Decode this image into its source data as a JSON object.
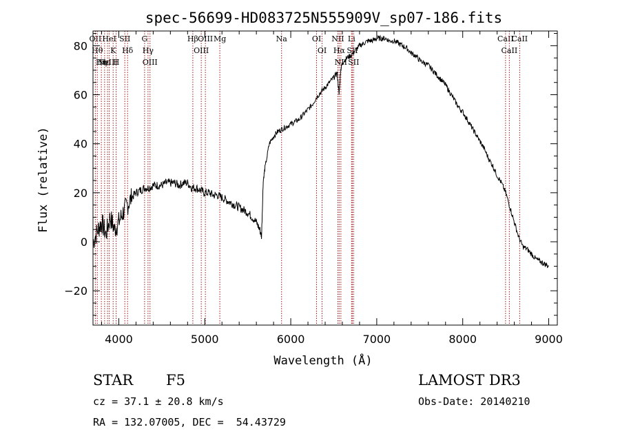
{
  "chart_data": {
    "type": "line",
    "title": "spec-56699-HD083725N555909V_sp07-186.fits",
    "xlabel": "Wavelength (Å)",
    "ylabel": "Flux (relative)",
    "xlim": [
      3700,
      9100
    ],
    "ylim": [
      -34,
      86
    ],
    "xticks": [
      4000,
      5000,
      6000,
      7000,
      8000,
      9000
    ],
    "yticks": [
      -20,
      0,
      20,
      40,
      60,
      80
    ],
    "grid": false,
    "series": [
      {
        "x": [
          3700,
          3760,
          3800,
          3850,
          3900,
          3950,
          4000,
          4050,
          4100,
          4150,
          4200,
          4250,
          4300,
          4350,
          4400,
          4450,
          4500,
          4550,
          4600,
          4650,
          4700,
          4750,
          4800,
          4850,
          4900,
          4950,
          5000,
          5050,
          5100,
          5150,
          5200,
          5250,
          5300,
          5350,
          5400,
          5450,
          5500,
          5550,
          5600,
          5640,
          5660,
          5680,
          5700,
          5750,
          5800,
          5850,
          5900,
          5950,
          6000,
          6050,
          6100,
          6150,
          6200,
          6250,
          6300,
          6350,
          6400,
          6450,
          6500,
          6540,
          6562,
          6580,
          6600,
          6650,
          6700,
          6750,
          6800,
          6850,
          6900,
          6950,
          7000,
          7050,
          7100,
          7150,
          7200,
          7250,
          7300,
          7350,
          7400,
          7450,
          7500,
          7550,
          7600,
          7650,
          7700,
          7750,
          7800,
          7850,
          7900,
          7950,
          8000,
          8050,
          8100,
          8150,
          8200,
          8250,
          8300,
          8350,
          8400,
          8450,
          8500,
          8550,
          8600,
          8650,
          8700,
          8750,
          8800,
          8850,
          8900,
          8950,
          9000
        ],
        "y": [
          0,
          5,
          8,
          3,
          10,
          5,
          8,
          12,
          15,
          18,
          20,
          21,
          22,
          22,
          23,
          23,
          23,
          24,
          24,
          24,
          23,
          24,
          24,
          22,
          22,
          21,
          20,
          20,
          19,
          19,
          18,
          17,
          16,
          15,
          14,
          13,
          12,
          10,
          8,
          5,
          2,
          25,
          30,
          40,
          43,
          45,
          46,
          47,
          48,
          49,
          50,
          52,
          54,
          56,
          59,
          61,
          63,
          65,
          67,
          69,
          60,
          70,
          73,
          75,
          76,
          78,
          80,
          81,
          82,
          82,
          83,
          83,
          83,
          82,
          82,
          81,
          80,
          79,
          77,
          76,
          74,
          73,
          72,
          70,
          68,
          66,
          64,
          61,
          58,
          55,
          53,
          50,
          47,
          44,
          41,
          38,
          34,
          31,
          27,
          24,
          20,
          14,
          8,
          2,
          -2,
          -3,
          -5,
          -7,
          -8,
          -9,
          -10
        ],
        "color": "#000000"
      }
    ],
    "lines": [
      {
        "wl": 3727,
        "label": "OII"
      },
      {
        "wl": 3750,
        "label": "Hθ"
      },
      {
        "wl": 3797,
        "label": "Hη"
      },
      {
        "wl": 3835,
        "label": "Hε"
      },
      {
        "wl": 3869,
        "label": "NeIII"
      },
      {
        "wl": 3889,
        "label": "HeI"
      },
      {
        "wl": 3934,
        "label": "K"
      },
      {
        "wl": 3969,
        "label": "H"
      },
      {
        "wl": 4070,
        "label": "SII"
      },
      {
        "wl": 4102,
        "label": "Hδ"
      },
      {
        "wl": 4300,
        "label": "G"
      },
      {
        "wl": 4340,
        "label": "Hγ"
      },
      {
        "wl": 4363,
        "label": "OIII"
      },
      {
        "wl": 4861,
        "label": "Hβ"
      },
      {
        "wl": 4959,
        "label": "OIII"
      },
      {
        "wl": 5007,
        "label": "OIII"
      },
      {
        "wl": 5175,
        "label": "Mg"
      },
      {
        "wl": 5893,
        "label": "Na"
      },
      {
        "wl": 6300,
        "label": "OI"
      },
      {
        "wl": 6364,
        "label": "OI"
      },
      {
        "wl": 6548,
        "label": "NII"
      },
      {
        "wl": 6563,
        "label": "Hα"
      },
      {
        "wl": 6583,
        "label": "NII"
      },
      {
        "wl": 6707,
        "label": "Li"
      },
      {
        "wl": 6716,
        "label": "SII"
      },
      {
        "wl": 6731,
        "label": "SII"
      },
      {
        "wl": 8498,
        "label": "CaII"
      },
      {
        "wl": 8542,
        "label": "CaII"
      },
      {
        "wl": 8662,
        "label": "CaII"
      }
    ]
  },
  "info": {
    "class_label": "STAR",
    "subclass": "F5",
    "survey": "LAMOST DR3",
    "cz": "cz = 37.1 ± 20.8 km/s",
    "obs_date": "Obs-Date: 20140210",
    "coords": "RA = 132.07005, DEC =  54.43729"
  }
}
